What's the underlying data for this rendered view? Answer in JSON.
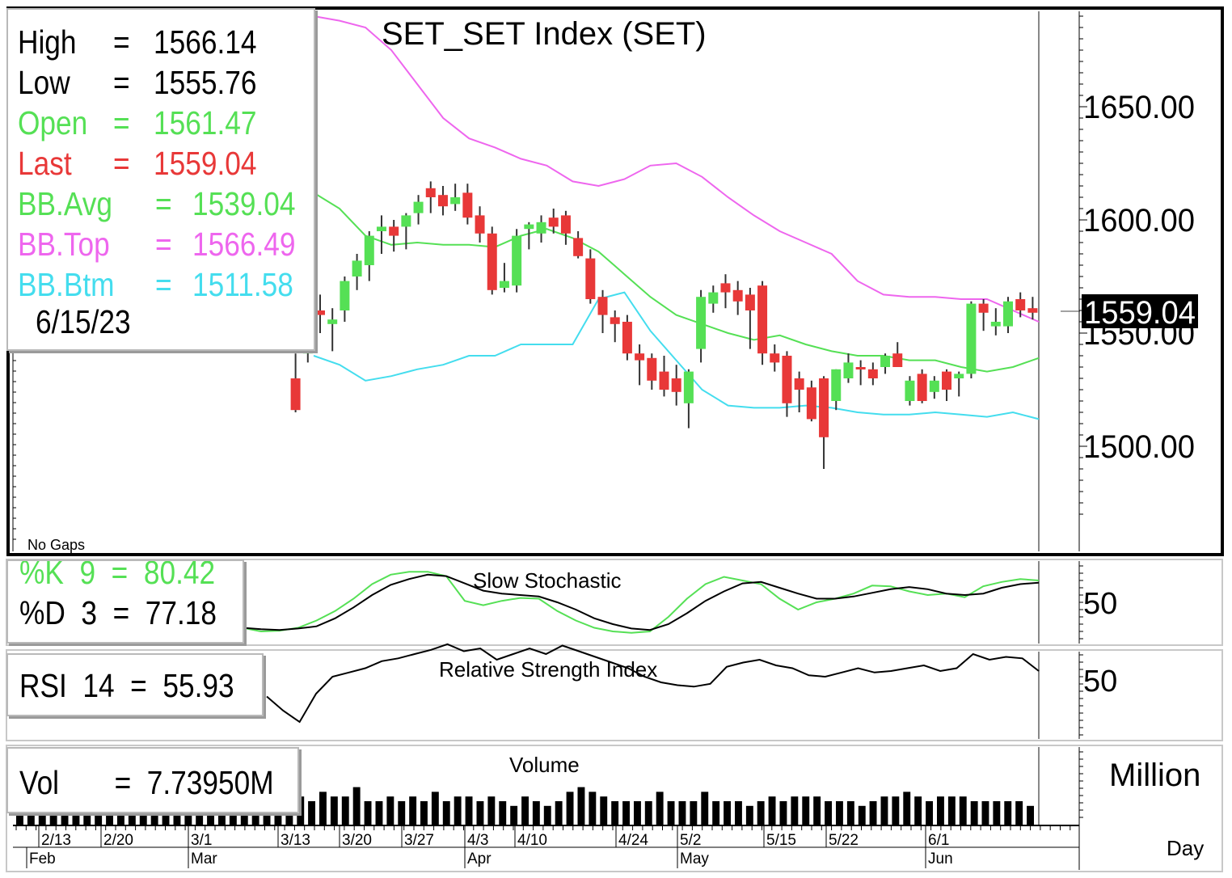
{
  "chart_title": "SET_SET  Index  (SET)",
  "legend": {
    "high": {
      "label": "High",
      "value": "1566.14",
      "color": "#000000"
    },
    "low": {
      "label": "Low",
      "value": "1555.76",
      "color": "#000000"
    },
    "open": {
      "label": "Open",
      "value": "1561.47",
      "color": "#55e055"
    },
    "last": {
      "label": "Last",
      "value": "1559.04",
      "color": "#e83838"
    },
    "bb_avg": {
      "label": "BB.Avg",
      "value": "1539.04",
      "color": "#55e055"
    },
    "bb_top": {
      "label": "BB.Top",
      "value": "1566.49",
      "color": "#ee66ee"
    },
    "bb_btm": {
      "label": "BB.Btm",
      "value": "1511.58",
      "color": "#44ddee"
    },
    "date": "6/15/23"
  },
  "no_gaps_label": "No  Gaps",
  "last_price_tag": "1559.04",
  "stoch": {
    "title": "Slow  Stochastic",
    "k_label": "%K  9  =  80.42",
    "d_label": "%D  3  =  77.18",
    "k_color": "#55e055",
    "d_color": "#000000"
  },
  "rsi": {
    "title": "Relative  Strength  Index",
    "label": "RSI  14  =  55.93"
  },
  "volume": {
    "title": "Volume",
    "label": "Vol       =  7.73950M",
    "unit_label": "Million",
    "day_label": "Day"
  },
  "colors": {
    "up": "#55e055",
    "down": "#e83838",
    "bb_top": "#ee66ee",
    "bb_avg": "#55e055",
    "bb_btm": "#44ddee"
  },
  "chart_data": [
    {
      "type": "candlestick",
      "title": "SET_SET  Index  (SET)",
      "y_ticks": [
        "1650.00",
        "1600.00",
        "1500.00"
      ],
      "y_tick_values": [
        1650,
        1600,
        1500
      ],
      "ylim": [
        1454,
        1695
      ],
      "candles": [
        {
          "o": 1530,
          "h": 1541,
          "l": 1515,
          "c": 1516
        },
        {
          "o": 1541,
          "h": 1563,
          "l": 1537,
          "c": 1551
        },
        {
          "o": 1560,
          "h": 1567,
          "l": 1550,
          "c": 1558
        },
        {
          "o": 1554,
          "h": 1561,
          "l": 1542,
          "c": 1556
        },
        {
          "o": 1560,
          "h": 1575,
          "l": 1555,
          "c": 1573
        },
        {
          "o": 1575,
          "h": 1585,
          "l": 1569,
          "c": 1582
        },
        {
          "o": 1580,
          "h": 1595,
          "l": 1573,
          "c": 1593
        },
        {
          "o": 1595,
          "h": 1602,
          "l": 1585,
          "c": 1597
        },
        {
          "o": 1597,
          "h": 1600,
          "l": 1586,
          "c": 1593
        },
        {
          "o": 1597,
          "h": 1603,
          "l": 1587,
          "c": 1602
        },
        {
          "o": 1603,
          "h": 1611,
          "l": 1598,
          "c": 1608
        },
        {
          "o": 1614,
          "h": 1617,
          "l": 1603,
          "c": 1610
        },
        {
          "o": 1611,
          "h": 1615,
          "l": 1602,
          "c": 1606
        },
        {
          "o": 1607,
          "h": 1616,
          "l": 1604,
          "c": 1610
        },
        {
          "o": 1612,
          "h": 1616,
          "l": 1598,
          "c": 1601
        },
        {
          "o": 1602,
          "h": 1606,
          "l": 1590,
          "c": 1594
        },
        {
          "o": 1594,
          "h": 1597,
          "l": 1567,
          "c": 1569
        },
        {
          "o": 1570,
          "h": 1581,
          "l": 1568,
          "c": 1573
        },
        {
          "o": 1571,
          "h": 1596,
          "l": 1568,
          "c": 1593
        },
        {
          "o": 1596,
          "h": 1599,
          "l": 1587,
          "c": 1598
        },
        {
          "o": 1594,
          "h": 1602,
          "l": 1590,
          "c": 1599
        },
        {
          "o": 1601,
          "h": 1605,
          "l": 1594,
          "c": 1597
        },
        {
          "o": 1602,
          "h": 1604,
          "l": 1589,
          "c": 1594
        },
        {
          "o": 1592,
          "h": 1595,
          "l": 1583,
          "c": 1584
        },
        {
          "o": 1583,
          "h": 1587,
          "l": 1563,
          "c": 1565
        },
        {
          "o": 1566,
          "h": 1569,
          "l": 1550,
          "c": 1558
        },
        {
          "o": 1557,
          "h": 1560,
          "l": 1546,
          "c": 1554
        },
        {
          "o": 1555,
          "h": 1558,
          "l": 1538,
          "c": 1541
        },
        {
          "o": 1541,
          "h": 1545,
          "l": 1527,
          "c": 1538
        },
        {
          "o": 1539,
          "h": 1541,
          "l": 1525,
          "c": 1529
        },
        {
          "o": 1533,
          "h": 1540,
          "l": 1522,
          "c": 1525
        },
        {
          "o": 1530,
          "h": 1536,
          "l": 1518,
          "c": 1524
        },
        {
          "o": 1519,
          "h": 1534,
          "l": 1508,
          "c": 1533
        },
        {
          "o": 1543,
          "h": 1569,
          "l": 1537,
          "c": 1566
        },
        {
          "o": 1563,
          "h": 1571,
          "l": 1559,
          "c": 1568
        },
        {
          "o": 1572,
          "h": 1576,
          "l": 1561,
          "c": 1568
        },
        {
          "o": 1569,
          "h": 1573,
          "l": 1558,
          "c": 1564
        },
        {
          "o": 1567,
          "h": 1570,
          "l": 1543,
          "c": 1560
        },
        {
          "o": 1571,
          "h": 1573,
          "l": 1536,
          "c": 1541
        },
        {
          "o": 1541,
          "h": 1545,
          "l": 1533,
          "c": 1537
        },
        {
          "o": 1540,
          "h": 1542,
          "l": 1513,
          "c": 1519
        },
        {
          "o": 1530,
          "h": 1533,
          "l": 1515,
          "c": 1525
        },
        {
          "o": 1526,
          "h": 1529,
          "l": 1511,
          "c": 1512
        },
        {
          "o": 1530,
          "h": 1531,
          "l": 1490,
          "c": 1504
        },
        {
          "o": 1520,
          "h": 1534,
          "l": 1516,
          "c": 1534
        },
        {
          "o": 1530,
          "h": 1541,
          "l": 1528,
          "c": 1537
        },
        {
          "o": 1535,
          "h": 1538,
          "l": 1527,
          "c": 1534
        },
        {
          "o": 1534,
          "h": 1537,
          "l": 1527,
          "c": 1530
        },
        {
          "o": 1535,
          "h": 1541,
          "l": 1532,
          "c": 1540
        },
        {
          "o": 1541,
          "h": 1546,
          "l": 1535,
          "c": 1535
        },
        {
          "o": 1520,
          "h": 1531,
          "l": 1518,
          "c": 1529
        },
        {
          "o": 1532,
          "h": 1534,
          "l": 1519,
          "c": 1520
        },
        {
          "o": 1524,
          "h": 1531,
          "l": 1521,
          "c": 1529
        },
        {
          "o": 1533,
          "h": 1534,
          "l": 1520,
          "c": 1525
        },
        {
          "o": 1530,
          "h": 1533,
          "l": 1522,
          "c": 1532
        },
        {
          "o": 1532,
          "h": 1564,
          "l": 1530,
          "c": 1563
        },
        {
          "o": 1563,
          "h": 1565,
          "l": 1551,
          "c": 1559
        },
        {
          "o": 1553,
          "h": 1561,
          "l": 1549,
          "c": 1555
        },
        {
          "o": 1553,
          "h": 1566,
          "l": 1550,
          "c": 1564
        },
        {
          "o": 1565,
          "h": 1568,
          "l": 1557,
          "c": 1560
        },
        {
          "o": 1561,
          "h": 1566,
          "l": 1556,
          "c": 1559
        }
      ],
      "bollinger": {
        "top": [
          1690,
          1688,
          1685,
          1675,
          1660,
          1645,
          1636,
          1632,
          1627,
          1624,
          1617,
          1615,
          1618,
          1624,
          1625,
          1619,
          1610,
          1602,
          1595,
          1590,
          1585,
          1573,
          1567,
          1566,
          1566,
          1565,
          1565,
          1560,
          1555
        ],
        "avg": [
          1612,
          1605,
          1593,
          1589,
          1590,
          1589,
          1589,
          1588,
          1593,
          1596,
          1592,
          1586,
          1576,
          1566,
          1558,
          1554,
          1550,
          1547,
          1549,
          1545,
          1542,
          1540,
          1540,
          1538,
          1538,
          1535,
          1533,
          1535,
          1539
        ],
        "btm": [
          1540,
          1536,
          1529,
          1531,
          1534,
          1536,
          1540,
          1540,
          1545,
          1545,
          1545,
          1565,
          1568,
          1551,
          1538,
          1525,
          1518,
          1517,
          1517,
          1518,
          1517,
          1515,
          1514,
          1514,
          1515,
          1514,
          1513,
          1515,
          1512
        ]
      }
    },
    {
      "type": "line",
      "title": "Slow  Stochastic",
      "y_ticks": [
        "50"
      ],
      "y_tick_values": [
        50
      ],
      "ylim": [
        0,
        100
      ],
      "series": [
        {
          "name": "%K",
          "values": [
            15,
            10,
            11,
            15,
            25,
            38,
            55,
            75,
            88,
            92,
            92,
            86,
            52,
            46,
            52,
            56,
            55,
            38,
            25,
            15,
            10,
            8,
            10,
            30,
            55,
            75,
            85,
            80,
            75,
            55,
            40,
            50,
            55,
            62,
            73,
            72,
            65,
            60,
            62,
            57,
            72,
            78,
            82,
            80
          ]
        },
        {
          "name": "%D",
          "values": [
            15,
            13,
            12,
            14,
            17,
            28,
            43,
            60,
            74,
            82,
            88,
            86,
            76,
            66,
            62,
            60,
            58,
            50,
            40,
            28,
            20,
            14,
            12,
            20,
            35,
            52,
            65,
            76,
            78,
            70,
            62,
            55,
            55,
            58,
            63,
            68,
            71,
            68,
            62,
            60,
            62,
            70,
            75,
            77
          ]
        }
      ]
    },
    {
      "type": "line",
      "title": "Relative  Strength  Index",
      "y_ticks": [
        "50"
      ],
      "y_tick_values": [
        50
      ],
      "ylim": [
        0,
        100
      ],
      "series": [
        {
          "name": "RSI",
          "values": [
            38,
            28,
            20,
            40,
            52,
            55,
            58,
            63,
            65,
            68,
            71,
            75,
            70,
            72,
            64,
            68,
            72,
            68,
            74,
            70,
            66,
            62,
            58,
            52,
            48,
            46,
            45,
            47,
            59,
            62,
            64,
            60,
            58,
            53,
            52,
            55,
            58,
            55,
            56,
            58,
            60,
            56,
            58,
            68,
            64,
            66,
            65,
            56
          ]
        }
      ]
    },
    {
      "type": "bar",
      "title": "Volume",
      "unit": "Million",
      "x_ticks": [
        "2/13",
        "2/20",
        "3/1",
        "3/13",
        "3/20",
        "3/27",
        "4/3",
        "4/10",
        "4/24",
        "5/2",
        "5/15",
        "5/22",
        "6/1"
      ],
      "months": [
        "Feb",
        "Mar",
        "Apr",
        "May",
        "Jun"
      ],
      "values": [
        12,
        12,
        12,
        13,
        13,
        13,
        13,
        12,
        11,
        10,
        10,
        9,
        8,
        8,
        8,
        7,
        8,
        9,
        7,
        6,
        8,
        6,
        5,
        5,
        5,
        6,
        5,
        7,
        6,
        6,
        8,
        5,
        5,
        6,
        5,
        6,
        5,
        7,
        5,
        6,
        6,
        5,
        6,
        5,
        4,
        6,
        5,
        4,
        5,
        7,
        8,
        7,
        6,
        5,
        5,
        5,
        5,
        7,
        5,
        5,
        5,
        7,
        5,
        5,
        5,
        4,
        5,
        6,
        5,
        6,
        6,
        6,
        5,
        5,
        5,
        4,
        5,
        6,
        6,
        7,
        6,
        5,
        6,
        6,
        6,
        5,
        5,
        5,
        5,
        5,
        4
      ]
    }
  ]
}
